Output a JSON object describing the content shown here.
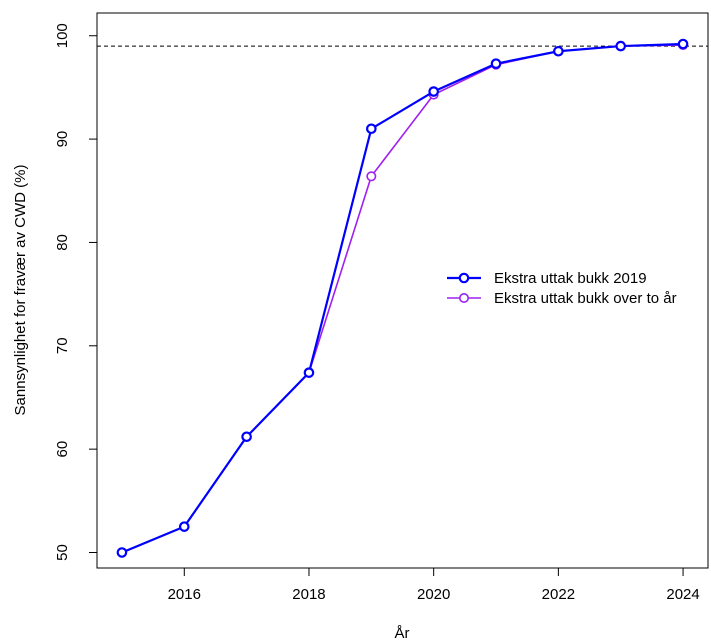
{
  "chart_data": {
    "type": "line",
    "title": "",
    "xlabel": "År",
    "ylabel": "Sannsynlighet for fravær av CWD (%)",
    "xlim": [
      2014.6,
      2024.4
    ],
    "ylim": [
      48.5,
      102.2
    ],
    "x_ticks": [
      2016,
      2018,
      2020,
      2022,
      2024
    ],
    "x_tick_labels": [
      "2016",
      "2018",
      "2020",
      "2022",
      "2024"
    ],
    "y_ticks": [
      50,
      60,
      70,
      80,
      90,
      100
    ],
    "y_tick_labels": [
      "50",
      "60",
      "70",
      "80",
      "90",
      "100"
    ],
    "reference_line": {
      "y": 99,
      "style": "dashed",
      "color": "#000000"
    },
    "legend_position": "right",
    "series": [
      {
        "name": "Ekstra uttak bukk over to år",
        "color": "#a020f0",
        "x": [
          2015,
          2016,
          2017,
          2018,
          2019,
          2020,
          2021,
          2022,
          2023,
          2024
        ],
        "y": [
          50.0,
          52.5,
          61.2,
          67.4,
          86.4,
          94.3,
          97.2,
          98.5,
          99.0,
          99.1
        ]
      },
      {
        "name": "Ekstra uttak bukk 2019",
        "color": "#0000ff",
        "x": [
          2015,
          2016,
          2017,
          2018,
          2019,
          2020,
          2021,
          2022,
          2023,
          2024
        ],
        "y": [
          50.0,
          52.5,
          61.2,
          67.4,
          91.0,
          94.6,
          97.3,
          98.5,
          99.0,
          99.2
        ]
      }
    ]
  }
}
